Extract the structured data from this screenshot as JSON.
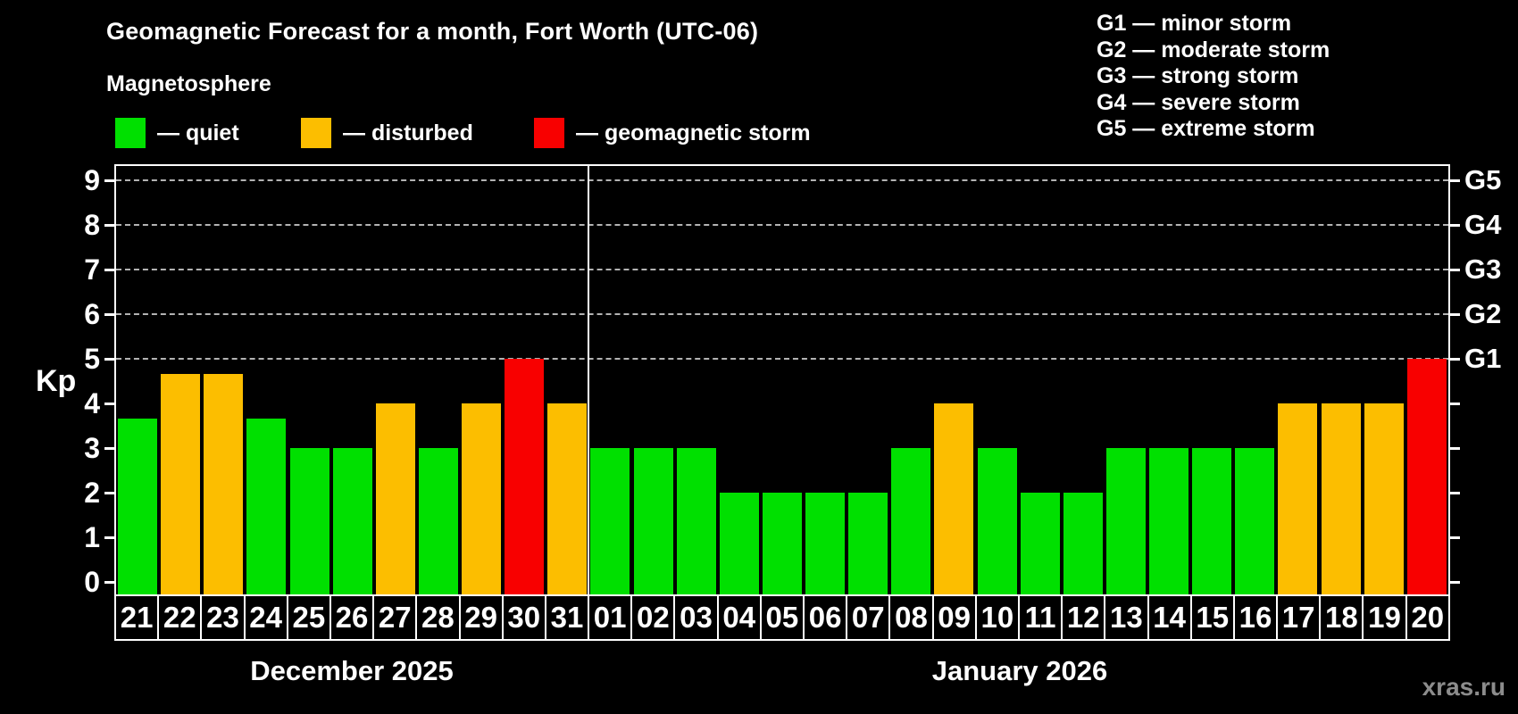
{
  "watermark": "xras.ru",
  "legend": {
    "items": [
      {
        "status": "quiet",
        "color": "#00e000",
        "label": "— quiet"
      },
      {
        "status": "disturbed",
        "color": "#fcbe00",
        "label": "— disturbed"
      },
      {
        "status": "storm",
        "color": "#f80000",
        "label": "— geomagnetic storm"
      }
    ]
  },
  "g_scale_legend": [
    "G1 — minor storm",
    "G2 — moderate storm",
    "G3 — strong storm",
    "G4 — severe storm",
    "G5 — extreme storm"
  ],
  "chart_data": {
    "type": "bar",
    "title": "Geomagnetic Forecast for a month, Fort Worth (UTC-06)",
    "subtitle": "Magnetosphere",
    "ylabel": "Kp",
    "ylim": [
      0,
      9
    ],
    "yticks": [
      0,
      1,
      2,
      3,
      4,
      5,
      6,
      7,
      8,
      9
    ],
    "gridlines_at": [
      5,
      6,
      7,
      8,
      9
    ],
    "grid": "dashed gray horizontal lines at Kp 5 to 9 only",
    "right_axis_labels": [
      {
        "kp": 5,
        "label": "G1"
      },
      {
        "kp": 6,
        "label": "G2"
      },
      {
        "kp": 7,
        "label": "G3"
      },
      {
        "kp": 8,
        "label": "G4"
      },
      {
        "kp": 9,
        "label": "G5"
      }
    ],
    "status_colors": {
      "quiet": "#00e000",
      "disturbed": "#fcbe00",
      "storm": "#f80000"
    },
    "months": [
      {
        "label": "December 2025",
        "days": [
          {
            "day": "21",
            "kp": 3.67,
            "status": "quiet"
          },
          {
            "day": "22",
            "kp": 4.67,
            "status": "disturbed"
          },
          {
            "day": "23",
            "kp": 4.67,
            "status": "disturbed"
          },
          {
            "day": "24",
            "kp": 3.67,
            "status": "quiet"
          },
          {
            "day": "25",
            "kp": 3,
            "status": "quiet"
          },
          {
            "day": "26",
            "kp": 3,
            "status": "quiet"
          },
          {
            "day": "27",
            "kp": 4,
            "status": "disturbed"
          },
          {
            "day": "28",
            "kp": 3,
            "status": "quiet"
          },
          {
            "day": "29",
            "kp": 4,
            "status": "disturbed"
          },
          {
            "day": "30",
            "kp": 5,
            "status": "storm"
          },
          {
            "day": "31",
            "kp": 4,
            "status": "disturbed"
          }
        ]
      },
      {
        "label": "January 2026",
        "days": [
          {
            "day": "01",
            "kp": 3,
            "status": "quiet"
          },
          {
            "day": "02",
            "kp": 3,
            "status": "quiet"
          },
          {
            "day": "03",
            "kp": 3,
            "status": "quiet"
          },
          {
            "day": "04",
            "kp": 2,
            "status": "quiet"
          },
          {
            "day": "05",
            "kp": 2,
            "status": "quiet"
          },
          {
            "day": "06",
            "kp": 2,
            "status": "quiet"
          },
          {
            "day": "07",
            "kp": 2,
            "status": "quiet"
          },
          {
            "day": "08",
            "kp": 3,
            "status": "quiet"
          },
          {
            "day": "09",
            "kp": 4,
            "status": "disturbed"
          },
          {
            "day": "10",
            "kp": 3,
            "status": "quiet"
          },
          {
            "day": "11",
            "kp": 2,
            "status": "quiet"
          },
          {
            "day": "12",
            "kp": 2,
            "status": "quiet"
          },
          {
            "day": "13",
            "kp": 3,
            "status": "quiet"
          },
          {
            "day": "14",
            "kp": 3,
            "status": "quiet"
          },
          {
            "day": "15",
            "kp": 3,
            "status": "quiet"
          },
          {
            "day": "16",
            "kp": 3,
            "status": "quiet"
          },
          {
            "day": "17",
            "kp": 4,
            "status": "disturbed"
          },
          {
            "day": "18",
            "kp": 4,
            "status": "disturbed"
          },
          {
            "day": "19",
            "kp": 4,
            "status": "disturbed"
          },
          {
            "day": "20",
            "kp": 5,
            "status": "storm"
          }
        ]
      }
    ]
  }
}
